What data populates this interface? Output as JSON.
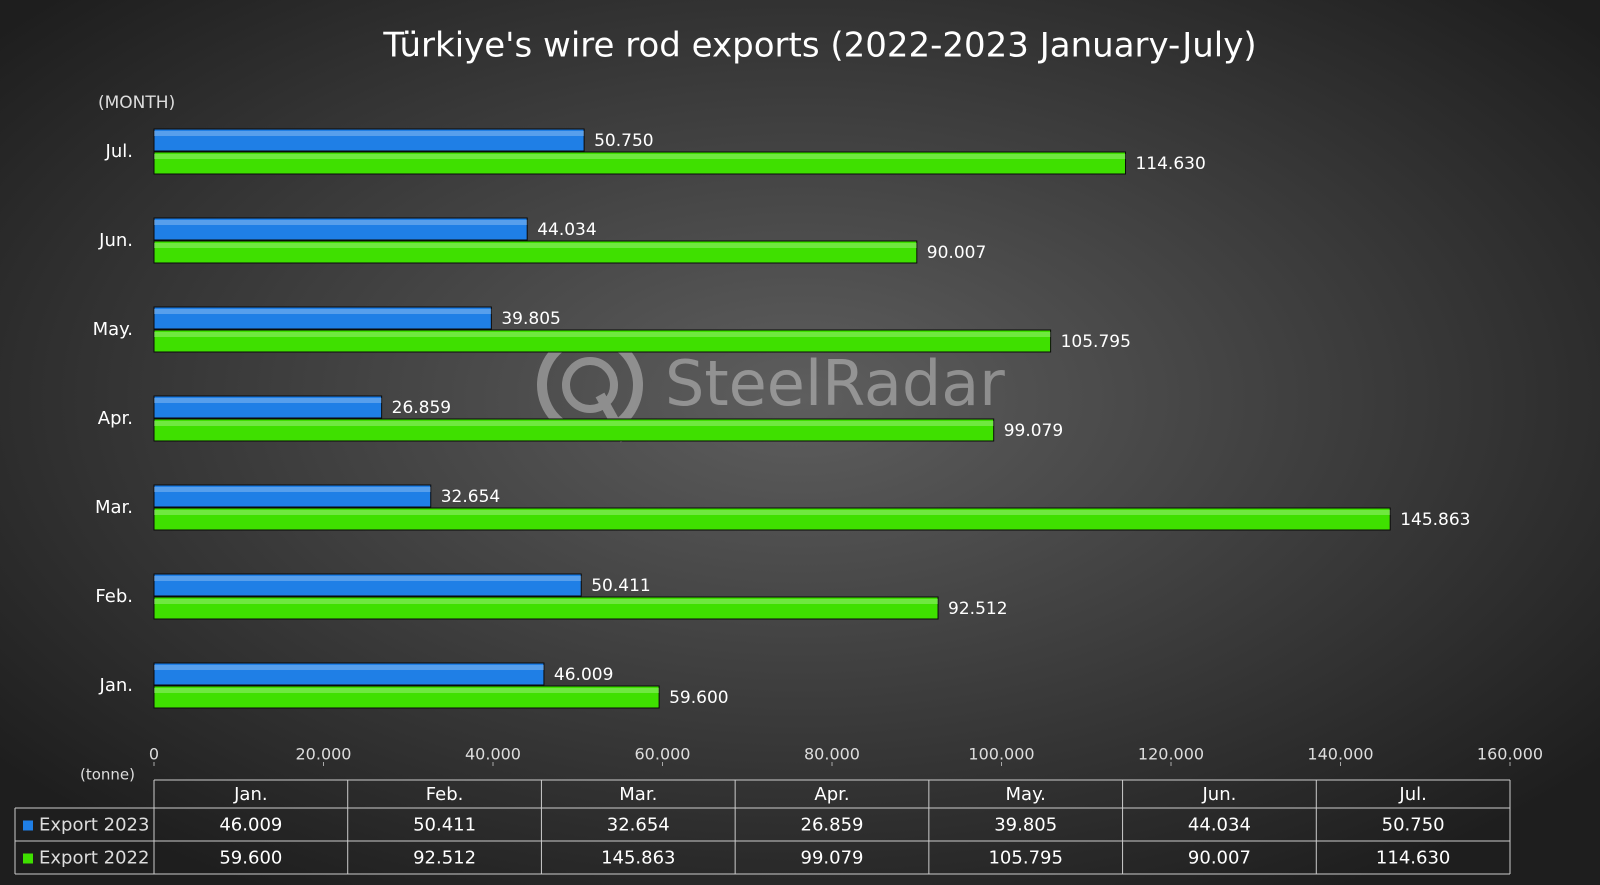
{
  "chart_data": {
    "type": "bar",
    "orientation": "horizontal",
    "title": "Türkiye's wire rod exports (2022-2023 January-July)",
    "y_axis_label": "(MONTH)",
    "x_axis_label": "(tonne)",
    "watermark": "SteelRadar",
    "categories": [
      "Jan.",
      "Feb.",
      "Mar.",
      "Apr.",
      "May.",
      "Jun.",
      "Jul."
    ],
    "series": [
      {
        "name": "Export 2023",
        "color": "#1f7fe6",
        "values": [
          46009,
          50411,
          32654,
          26859,
          39805,
          44034,
          50750
        ],
        "value_labels": [
          "46.009",
          "50.411",
          "32.654",
          "26.859",
          "39.805",
          "44.034",
          "50.750"
        ]
      },
      {
        "name": "Export 2022",
        "color": "#3fe000",
        "values": [
          59600,
          92512,
          145863,
          99079,
          105795,
          90007,
          114630
        ],
        "value_labels": [
          "59.600",
          "92.512",
          "145.863",
          "99.079",
          "105.795",
          "90.007",
          "114.630"
        ]
      }
    ],
    "xlim": [
      0,
      160000
    ],
    "xticks": [
      0,
      {
        "value": 20000,
        "label": "20.000"
      },
      {
        "value": 40000,
        "label": "40.000"
      },
      {
        "value": 60000,
        "label": "60.000"
      },
      {
        "value": 80000,
        "label": "80.000"
      },
      {
        "value": 100000,
        "label": "100.000"
      },
      {
        "value": 120000,
        "label": "120.000"
      },
      {
        "value": 140000,
        "label": "140.000"
      },
      {
        "value": 160000,
        "label": "160.000"
      }
    ],
    "grid": false,
    "data_table": true
  }
}
